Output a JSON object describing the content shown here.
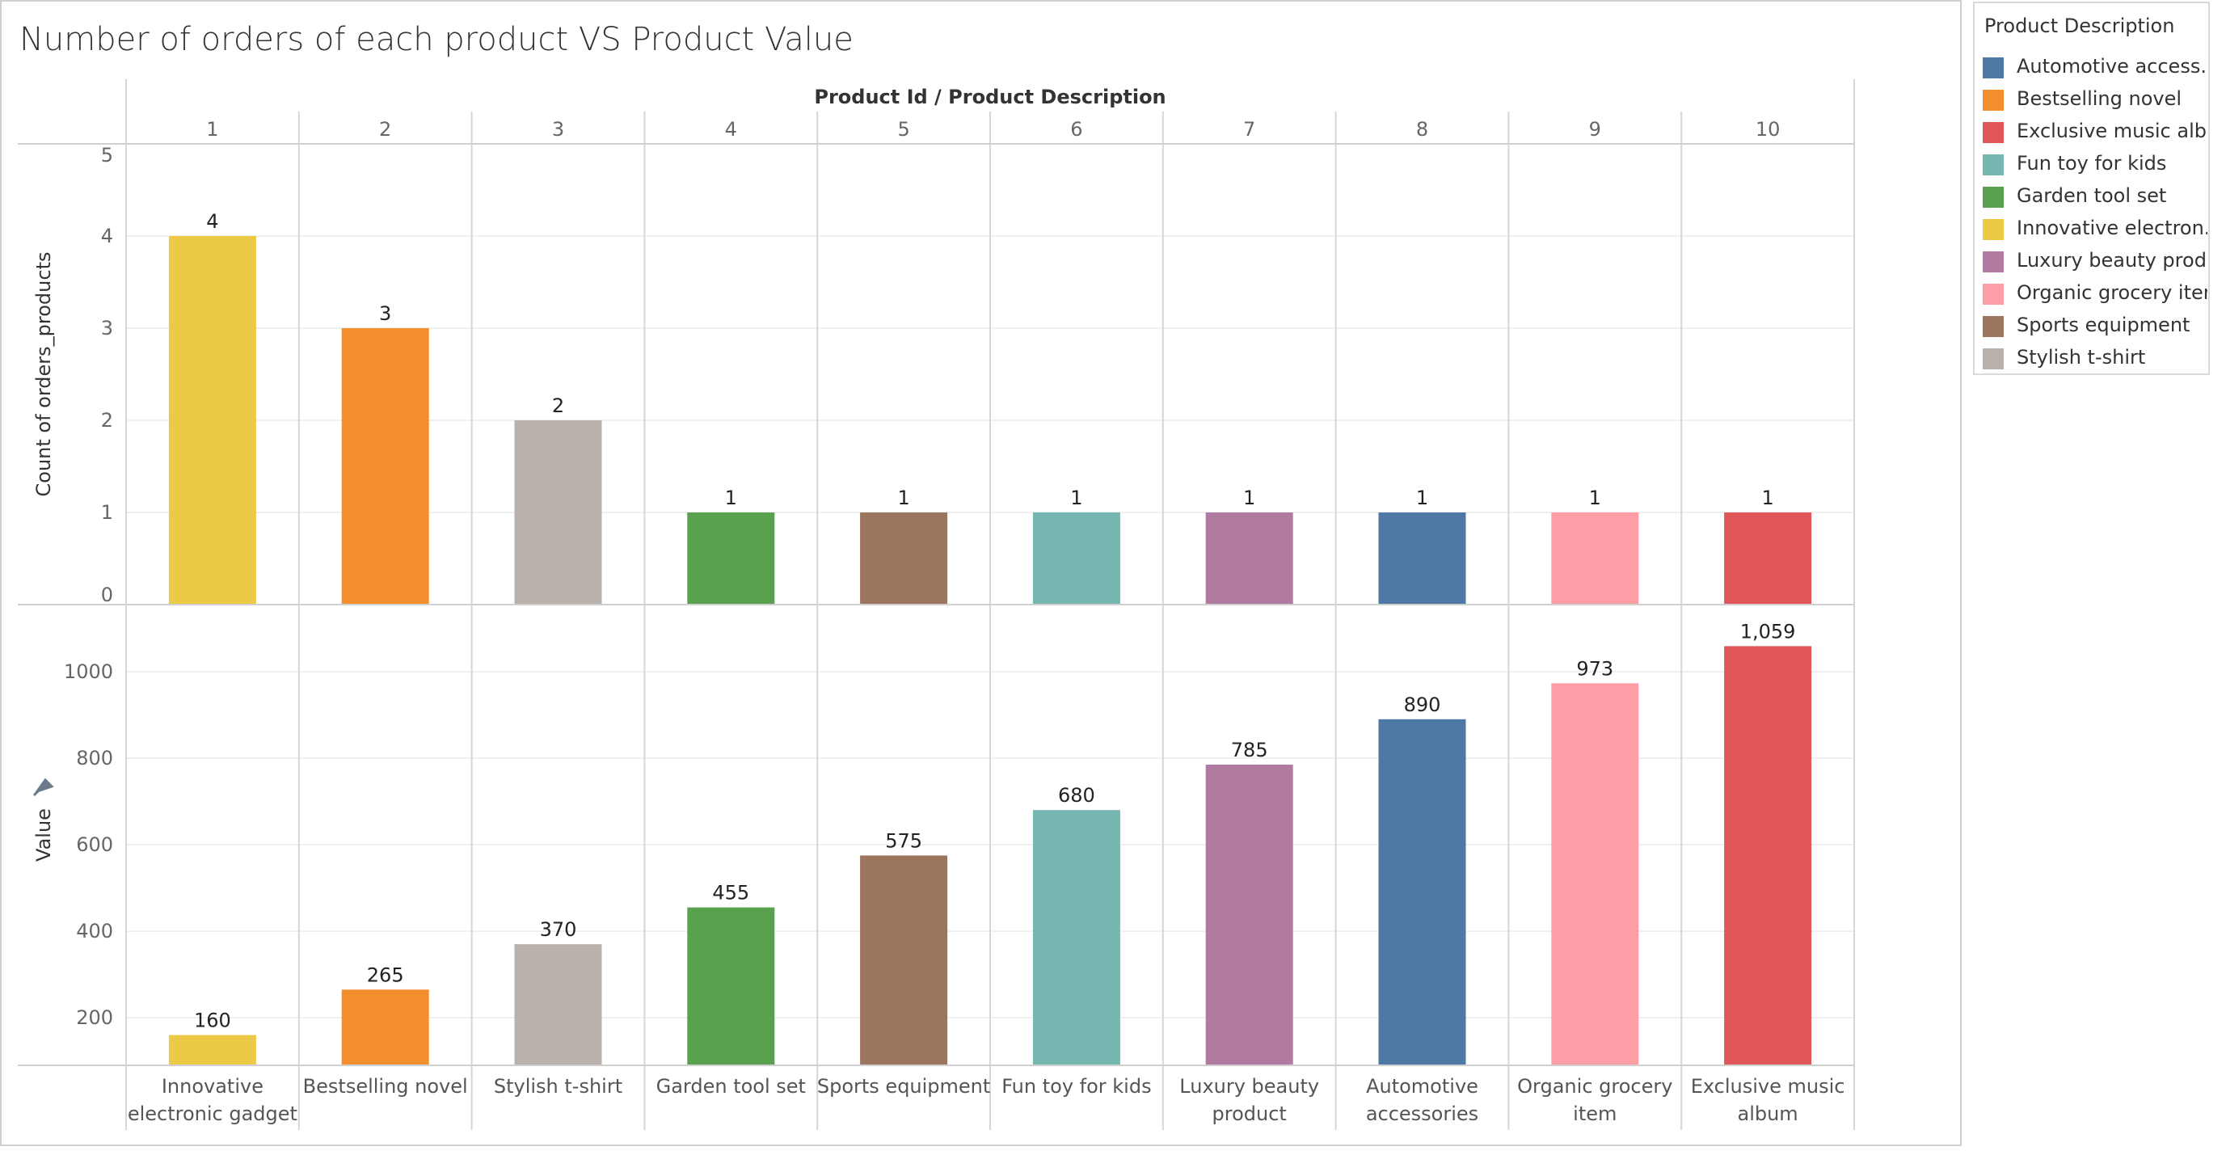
{
  "title": "Number of orders of each product VS Product Value",
  "legend": {
    "title": "Product Description",
    "items": [
      {
        "label": "Automotive access..",
        "color": "#4e79a7"
      },
      {
        "label": "Bestselling novel",
        "color": "#f28e2b"
      },
      {
        "label": "Exclusive music alb..",
        "color": "#e15759"
      },
      {
        "label": "Fun toy for kids",
        "color": "#76b7b2"
      },
      {
        "label": "Garden tool set",
        "color": "#59a14f"
      },
      {
        "label": "Innovative electron..",
        "color": "#edc948"
      },
      {
        "label": "Luxury beauty prod..",
        "color": "#b07aa1"
      },
      {
        "label": "Organic grocery item",
        "color": "#ff9da7"
      },
      {
        "label": "Sports equipment",
        "color": "#9c755f"
      },
      {
        "label": "Stylish t-shirt",
        "color": "#bab0ac"
      }
    ]
  },
  "chart_data": {
    "type": "bar",
    "header": "Product Id  /  Product Description",
    "product_ids": [
      "1",
      "2",
      "3",
      "4",
      "5",
      "6",
      "7",
      "8",
      "9",
      "10"
    ],
    "categories": [
      "Innovative electronic gadget",
      "Bestselling novel",
      "Stylish t-shirt",
      "Garden tool set",
      "Sports equipment",
      "Fun toy for kids",
      "Luxury beauty product",
      "Automotive accessories",
      "Organic grocery item",
      "Exclusive music album"
    ],
    "category_lines": [
      [
        "Innovative",
        "electronic gadget"
      ],
      [
        "Bestselling novel"
      ],
      [
        "Stylish t-shirt"
      ],
      [
        "Garden tool set"
      ],
      [
        "Sports equipment"
      ],
      [
        "Fun toy for kids"
      ],
      [
        "Luxury beauty",
        "product"
      ],
      [
        "Automotive",
        "accessories"
      ],
      [
        "Organic grocery",
        "item"
      ],
      [
        "Exclusive music",
        "album"
      ]
    ],
    "colors": [
      "#edc948",
      "#f28e2b",
      "#bab0ac",
      "#59a14f",
      "#9c755f",
      "#76b7b2",
      "#b07aa1",
      "#4e79a7",
      "#ff9da7",
      "#e15759"
    ],
    "series": [
      {
        "name": "Count of orders_products",
        "values": [
          4,
          3,
          2,
          1,
          1,
          1,
          1,
          1,
          1,
          1
        ],
        "labels": [
          "4",
          "3",
          "2",
          "1",
          "1",
          "1",
          "1",
          "1",
          "1",
          "1"
        ],
        "ylim": [
          0,
          5
        ],
        "ticks": [
          0,
          1,
          2,
          3,
          4,
          5
        ]
      },
      {
        "name": "Value",
        "values": [
          160,
          265,
          370,
          455,
          575,
          680,
          785,
          890,
          973,
          1059
        ],
        "labels": [
          "160",
          "265",
          "370",
          "455",
          "575",
          "680",
          "785",
          "890",
          "973",
          "1,059"
        ],
        "ylim": [
          90,
          1155
        ],
        "ticks": [
          200,
          400,
          600,
          800,
          1000
        ]
      }
    ],
    "grid": true,
    "legend_position": "right"
  }
}
